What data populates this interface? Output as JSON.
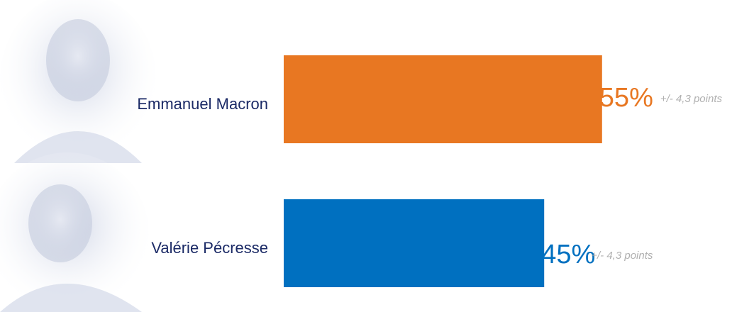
{
  "chart_data": {
    "type": "hbar",
    "categories": [
      "Emmanuel Macron",
      "Valérie Pécresse"
    ],
    "values": [
      55,
      45
    ],
    "value_labels": [
      "55%",
      "45%"
    ],
    "colors": [
      "#e87722",
      "#0070c0"
    ],
    "annotations": [
      "+/- 4,3 points",
      "+/- 4,3 points"
    ]
  }
}
